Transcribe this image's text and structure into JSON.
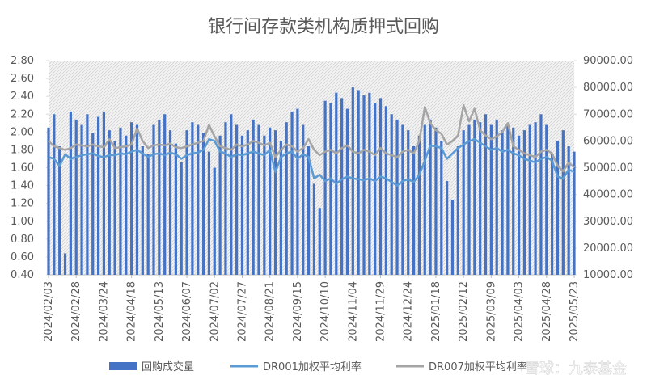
{
  "chart_data": {
    "type": "bar-line",
    "title": "银行间存款类机构质押式回购",
    "watermark": "雪球：九泰基金",
    "x": [
      "2024/02/03",
      "2024/02/08",
      "2024/02/13",
      "2024/02/18",
      "2024/02/23",
      "2024/02/28",
      "2024/03/04",
      "2024/03/09",
      "2024/03/14",
      "2024/03/19",
      "2024/03/24",
      "2024/03/29",
      "2024/04/03",
      "2024/04/08",
      "2024/04/13",
      "2024/04/18",
      "2024/04/23",
      "2024/04/28",
      "2024/05/03",
      "2024/05/08",
      "2024/05/13",
      "2024/05/18",
      "2024/05/23",
      "2024/05/28",
      "2024/06/02",
      "2024/06/07",
      "2024/06/12",
      "2024/06/17",
      "2024/06/22",
      "2024/06/27",
      "2024/07/02",
      "2024/07/07",
      "2024/07/12",
      "2024/07/17",
      "2024/07/22",
      "2024/07/27",
      "2024/08/01",
      "2024/08/06",
      "2024/08/11",
      "2024/08/16",
      "2024/08/21",
      "2024/08/26",
      "2024/08/31",
      "2024/09/05",
      "2024/09/10",
      "2024/09/15",
      "2024/09/20",
      "2024/09/25",
      "2024/09/30",
      "2024/10/05",
      "2024/10/10",
      "2024/10/15",
      "2024/10/20",
      "2024/10/25",
      "2024/10/30",
      "2024/11/04",
      "2024/11/09",
      "2024/11/14",
      "2024/11/19",
      "2024/11/24",
      "2024/11/29",
      "2024/12/04",
      "2024/12/09",
      "2024/12/14",
      "2024/12/19",
      "2024/12/24",
      "2024/12/29",
      "2025/01/03",
      "2025/01/08",
      "2025/01/13",
      "2025/01/18",
      "2025/01/23",
      "2025/01/28",
      "2025/02/02",
      "2025/02/07",
      "2025/02/12",
      "2025/02/17",
      "2025/02/22",
      "2025/02/27",
      "2025/03/04",
      "2025/03/09",
      "2025/03/14",
      "2025/03/19",
      "2025/03/24",
      "2025/03/29",
      "2025/04/03",
      "2025/04/08",
      "2025/04/13",
      "2025/04/18",
      "2025/04/23",
      "2025/04/28",
      "2025/05/03",
      "2025/05/08",
      "2025/05/13",
      "2025/05/18",
      "2025/05/23"
    ],
    "xlim": [
      "2024/02/03",
      "2025/05/23"
    ],
    "xticks": [
      "2024/02/03",
      "2024/02/28",
      "2024/03/24",
      "2024/04/18",
      "2024/05/13",
      "2024/06/07",
      "2024/07/02",
      "2024/07/27",
      "2024/08/21",
      "2024/09/15",
      "2024/10/10",
      "2024/11/04",
      "2024/11/29",
      "2024/12/24",
      "2025/01/18",
      "2025/02/12",
      "2025/03/09",
      "2025/04/03",
      "2025/04/28",
      "2025/05/23"
    ],
    "ylim": [
      0.4,
      2.8
    ],
    "yticks": [
      {
        "value": 0.4,
        "label": "0.40"
      },
      {
        "value": 0.6,
        "label": "0.60"
      },
      {
        "value": 0.8,
        "label": "0.80"
      },
      {
        "value": 1.0,
        "label": "1.00"
      },
      {
        "value": 1.2,
        "label": "1.20"
      },
      {
        "value": 1.4,
        "label": "1.40"
      },
      {
        "value": 1.6,
        "label": "1.60"
      },
      {
        "value": 1.8,
        "label": "1.80"
      },
      {
        "value": 2.0,
        "label": "2.00"
      },
      {
        "value": 2.2,
        "label": "2.20"
      },
      {
        "value": 2.4,
        "label": "2.40"
      },
      {
        "value": 2.6,
        "label": "2.60"
      },
      {
        "value": 2.8,
        "label": "2.80"
      }
    ],
    "y2lim": [
      10000,
      90000
    ],
    "y2ticks": [
      {
        "value": 10000,
        "label": "10000.00"
      },
      {
        "value": 20000,
        "label": "20000.00"
      },
      {
        "value": 30000,
        "label": "30000.00"
      },
      {
        "value": 40000,
        "label": "40000.00"
      },
      {
        "value": 50000,
        "label": "50000.00"
      },
      {
        "value": 60000,
        "label": "60000.00"
      },
      {
        "value": 70000,
        "label": "70000.00"
      },
      {
        "value": 80000,
        "label": "80000.00"
      },
      {
        "value": 90000,
        "label": "90000.00"
      }
    ],
    "series": [
      {
        "name": "回购成交量",
        "kind": "bar",
        "axis": "y2",
        "color": "#4472c4",
        "values": [
          65000,
          70000,
          58000,
          18000,
          71000,
          68000,
          66000,
          70000,
          63000,
          69000,
          71000,
          64000,
          60000,
          65000,
          62000,
          67000,
          66000,
          58000,
          55000,
          66000,
          68000,
          70000,
          64000,
          59000,
          52000,
          64000,
          67000,
          66000,
          63000,
          56000,
          50000,
          62000,
          67000,
          70000,
          66000,
          62000,
          64000,
          68000,
          66000,
          62000,
          65000,
          64000,
          60000,
          67000,
          71000,
          72000,
          66000,
          58000,
          44000,
          35000,
          75000,
          74000,
          78000,
          76000,
          72000,
          80000,
          79000,
          77000,
          78000,
          74000,
          76000,
          73000,
          70000,
          68000,
          66000,
          64000,
          58000,
          62000,
          66000,
          68000,
          65000,
          60000,
          45000,
          38000,
          58000,
          64000,
          66000,
          68000,
          67000,
          70000,
          66000,
          68000,
          64000,
          66000,
          65000,
          62000,
          64000,
          66000,
          67000,
          70000,
          66000,
          55000,
          60000,
          64000,
          58000,
          56000
        ]
      },
      {
        "name": "DR001加权平均利率",
        "kind": "line",
        "axis": "y",
        "color": "#5b9bd5",
        "values": [
          1.72,
          1.7,
          1.62,
          1.75,
          1.7,
          1.72,
          1.74,
          1.75,
          1.76,
          1.73,
          1.72,
          1.74,
          1.74,
          1.76,
          1.75,
          1.78,
          1.8,
          1.76,
          1.72,
          1.75,
          1.76,
          1.74,
          1.77,
          1.75,
          1.7,
          1.74,
          1.76,
          1.77,
          1.8,
          1.92,
          1.9,
          1.78,
          1.76,
          1.72,
          1.75,
          1.74,
          1.76,
          1.78,
          1.76,
          1.74,
          1.8,
          1.55,
          1.72,
          1.76,
          1.78,
          1.7,
          1.75,
          1.72,
          1.48,
          1.52,
          1.45,
          1.48,
          1.42,
          1.47,
          1.5,
          1.48,
          1.47,
          1.46,
          1.48,
          1.45,
          1.5,
          1.48,
          1.44,
          1.4,
          1.45,
          1.47,
          1.44,
          1.52,
          1.68,
          1.85,
          1.84,
          1.82,
          1.7,
          1.76,
          1.82,
          1.86,
          1.9,
          1.92,
          1.88,
          1.84,
          1.8,
          1.82,
          1.78,
          1.8,
          1.76,
          1.74,
          1.7,
          1.68,
          1.66,
          1.7,
          1.72,
          1.68,
          1.5,
          1.48,
          1.58,
          1.55
        ]
      },
      {
        "name": "DR007加权平均利率",
        "kind": "line",
        "axis": "y",
        "color": "#a5a5a5",
        "values": [
          1.9,
          1.84,
          1.82,
          1.8,
          1.82,
          1.86,
          1.85,
          1.84,
          1.86,
          1.84,
          1.83,
          1.92,
          1.82,
          1.83,
          1.84,
          1.86,
          2.04,
          1.9,
          1.82,
          1.85,
          1.86,
          1.85,
          1.87,
          1.83,
          1.82,
          1.84,
          1.86,
          1.88,
          1.9,
          2.08,
          1.95,
          1.84,
          1.82,
          1.8,
          1.86,
          1.84,
          1.86,
          1.9,
          1.88,
          1.85,
          1.88,
          1.72,
          1.8,
          1.86,
          1.84,
          1.78,
          1.82,
          1.92,
          1.8,
          1.74,
          1.78,
          1.8,
          1.76,
          1.82,
          1.85,
          1.78,
          1.76,
          1.8,
          1.78,
          1.74,
          1.82,
          1.76,
          1.74,
          1.72,
          1.78,
          1.8,
          1.76,
          1.9,
          2.28,
          2.1,
          2.02,
          1.98,
          1.86,
          1.9,
          1.96,
          2.3,
          2.12,
          2.26,
          2.02,
          1.96,
          1.92,
          1.95,
          2.0,
          2.1,
          1.84,
          1.8,
          1.76,
          1.74,
          1.72,
          1.78,
          1.8,
          1.76,
          1.62,
          1.56,
          1.66,
          1.6
        ]
      }
    ]
  }
}
